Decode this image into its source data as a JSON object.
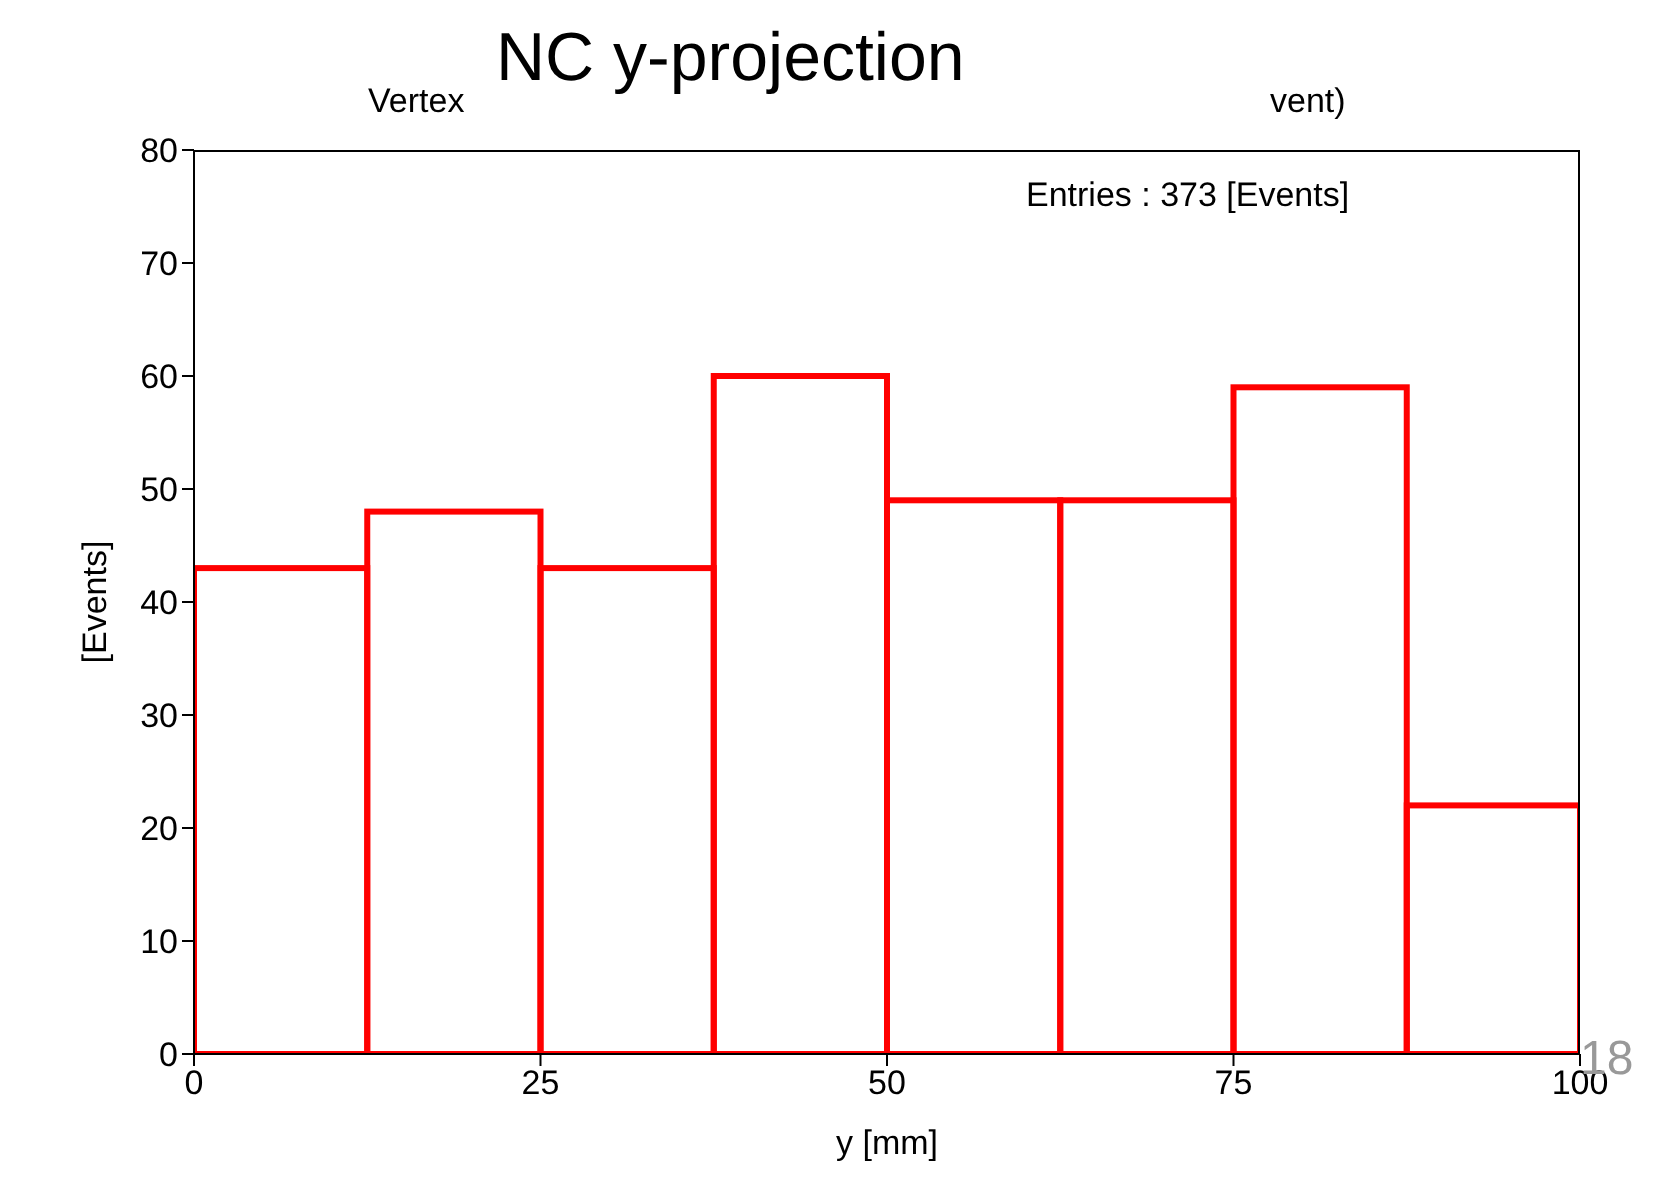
{
  "chart_data": {
    "type": "histogram",
    "title": "NC y-projection",
    "xlabel": "y [mm]",
    "ylabel": "[Events]",
    "bins": [
      0,
      12.5,
      25,
      37.5,
      50,
      62.5,
      75,
      87.5,
      100
    ],
    "values": [
      43,
      48,
      43,
      60,
      49,
      49,
      59,
      22
    ],
    "color": "#ff0000",
    "xlim": [
      0,
      100
    ],
    "xticks": [
      0,
      25,
      50,
      75,
      100
    ],
    "ylim": [
      0,
      80
    ],
    "yticks": [
      0,
      10,
      20,
      30,
      40,
      50,
      60,
      70,
      80
    ],
    "annotations": [
      "Vertex",
      "vent)",
      "Entries : 373 [Events]",
      "18"
    ]
  }
}
